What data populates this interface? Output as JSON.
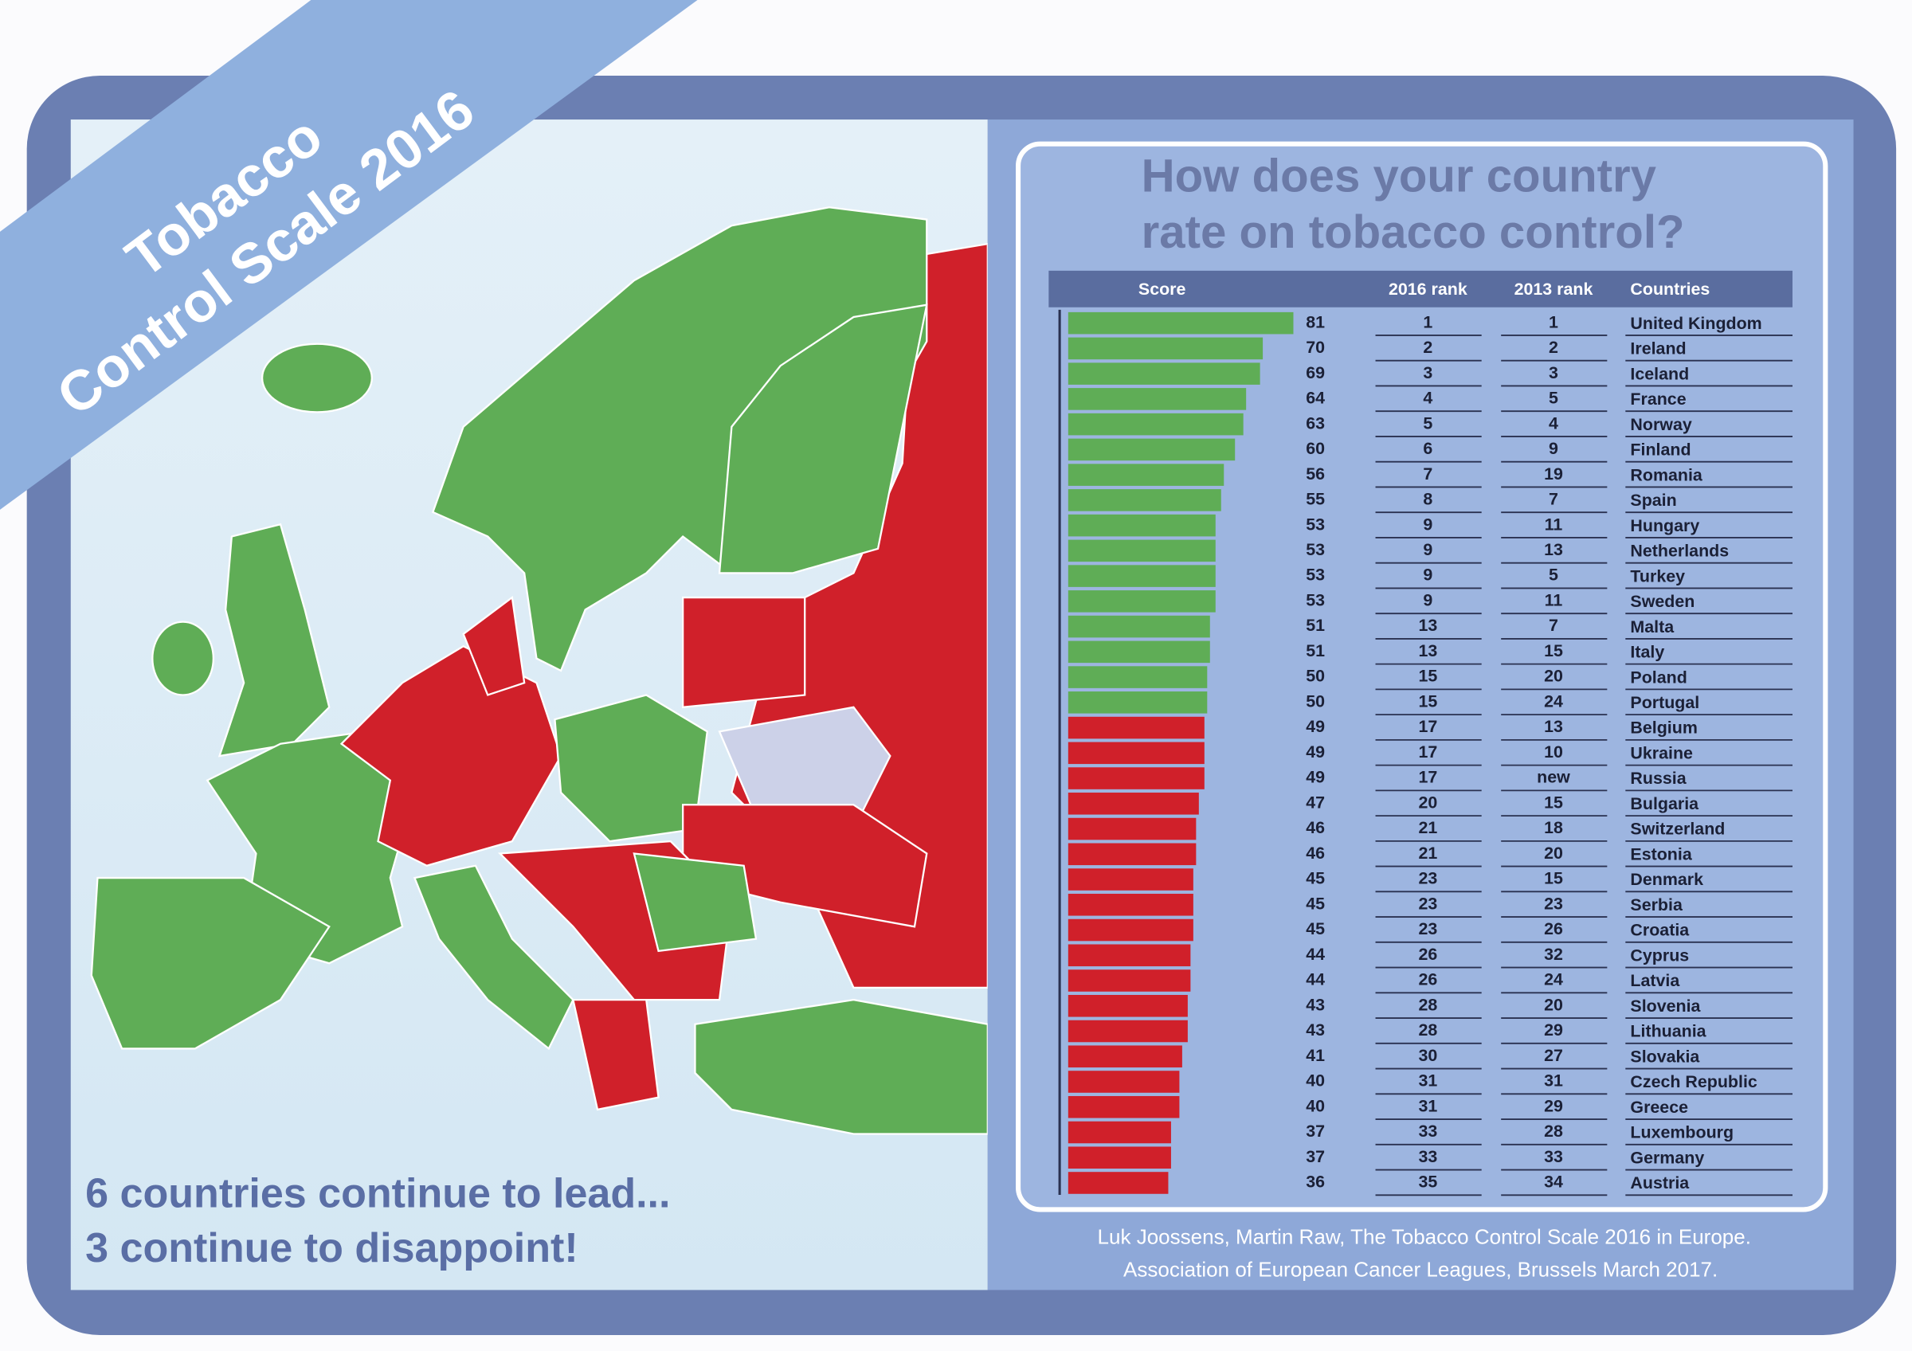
{
  "banner": [
    "Tobacco",
    "Control Scale 2016"
  ],
  "map_caption": [
    "6 countries continue to lead...",
    "3 continue to disappoint!"
  ],
  "source": [
    "Luk Joossens, Martin Raw, The Tobacco Control Scale 2016 in Europe.",
    "Association of European Cancer Leagues, Brussels March 2017."
  ],
  "chart_data": {
    "type": "bar",
    "title": "How does your country rate on tobacco control?",
    "columns": [
      "Score",
      "2016 rank",
      "2013 rank",
      "Countries"
    ],
    "categories": [
      "United Kingdom",
      "Ireland",
      "Iceland",
      "France",
      "Norway",
      "Finland",
      "Romania",
      "Spain",
      "Hungary",
      "Netherlands",
      "Turkey",
      "Sweden",
      "Malta",
      "Italy",
      "Poland",
      "Portugal",
      "Belgium",
      "Ukraine",
      "Russia",
      "Bulgaria",
      "Switzerland",
      "Estonia",
      "Denmark",
      "Serbia",
      "Croatia",
      "Cyprus",
      "Latvia",
      "Slovenia",
      "Lithuania",
      "Slovakia",
      "Czech Republic",
      "Greece",
      "Luxembourg",
      "Germany",
      "Austria"
    ],
    "values": [
      81,
      70,
      69,
      64,
      63,
      60,
      56,
      55,
      53,
      53,
      53,
      53,
      51,
      51,
      50,
      50,
      49,
      49,
      49,
      47,
      46,
      46,
      45,
      45,
      45,
      44,
      44,
      43,
      43,
      41,
      40,
      40,
      37,
      37,
      36
    ],
    "colors": [
      "#5fad56",
      "#5fad56",
      "#5fad56",
      "#5fad56",
      "#5fad56",
      "#5fad56",
      "#5fad56",
      "#5fad56",
      "#5fad56",
      "#5fad56",
      "#5fad56",
      "#5fad56",
      "#5fad56",
      "#5fad56",
      "#5fad56",
      "#5fad56",
      "#d0202a",
      "#d0202a",
      "#d0202a",
      "#d0202a",
      "#d0202a",
      "#d0202a",
      "#d0202a",
      "#d0202a",
      "#d0202a",
      "#d0202a",
      "#d0202a",
      "#d0202a",
      "#d0202a",
      "#d0202a",
      "#d0202a",
      "#d0202a",
      "#d0202a",
      "#d0202a",
      "#d0202a"
    ],
    "rank_2016": [
      1,
      2,
      3,
      4,
      5,
      6,
      7,
      8,
      9,
      9,
      9,
      9,
      13,
      13,
      15,
      15,
      17,
      17,
      17,
      20,
      21,
      21,
      23,
      23,
      23,
      26,
      26,
      28,
      28,
      30,
      31,
      31,
      33,
      33,
      35
    ],
    "rank_2013": [
      1,
      2,
      3,
      5,
      4,
      9,
      19,
      7,
      11,
      13,
      5,
      11,
      7,
      15,
      20,
      24,
      13,
      10,
      "new",
      15,
      18,
      20,
      15,
      23,
      26,
      32,
      24,
      20,
      29,
      27,
      31,
      29,
      28,
      33,
      34
    ]
  }
}
